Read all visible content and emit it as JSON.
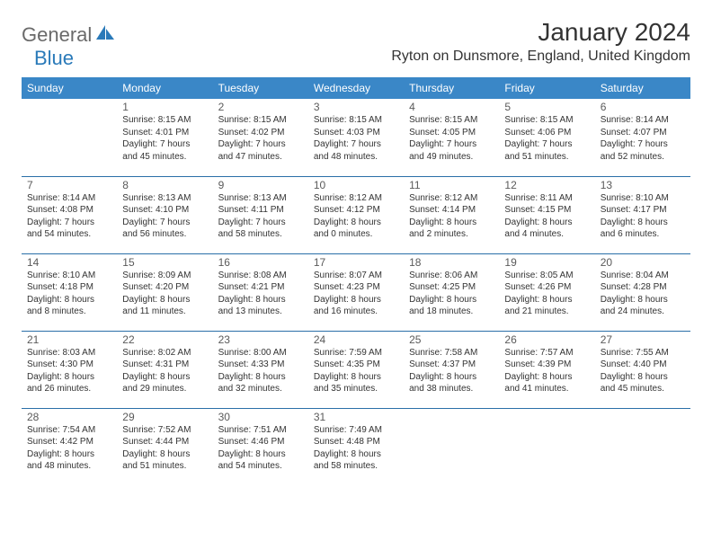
{
  "brand": {
    "text1": "General",
    "text2": "Blue",
    "icon_color": "#2a7ab9",
    "gray_color": "#6a6a6a"
  },
  "header": {
    "month_title": "January 2024",
    "location": "Ryton on Dunsmore, England, United Kingdom"
  },
  "colors": {
    "header_bg": "#3a87c7",
    "header_fg": "#ffffff",
    "row_border": "#2a6fa8",
    "text": "#333333",
    "daynum": "#5a5a5a",
    "background": "#ffffff"
  },
  "weekday_labels": [
    "Sunday",
    "Monday",
    "Tuesday",
    "Wednesday",
    "Thursday",
    "Friday",
    "Saturday"
  ],
  "weeks": [
    [
      null,
      {
        "n": "1",
        "sr": "Sunrise: 8:15 AM",
        "ss": "Sunset: 4:01 PM",
        "d1": "Daylight: 7 hours",
        "d2": "and 45 minutes."
      },
      {
        "n": "2",
        "sr": "Sunrise: 8:15 AM",
        "ss": "Sunset: 4:02 PM",
        "d1": "Daylight: 7 hours",
        "d2": "and 47 minutes."
      },
      {
        "n": "3",
        "sr": "Sunrise: 8:15 AM",
        "ss": "Sunset: 4:03 PM",
        "d1": "Daylight: 7 hours",
        "d2": "and 48 minutes."
      },
      {
        "n": "4",
        "sr": "Sunrise: 8:15 AM",
        "ss": "Sunset: 4:05 PM",
        "d1": "Daylight: 7 hours",
        "d2": "and 49 minutes."
      },
      {
        "n": "5",
        "sr": "Sunrise: 8:15 AM",
        "ss": "Sunset: 4:06 PM",
        "d1": "Daylight: 7 hours",
        "d2": "and 51 minutes."
      },
      {
        "n": "6",
        "sr": "Sunrise: 8:14 AM",
        "ss": "Sunset: 4:07 PM",
        "d1": "Daylight: 7 hours",
        "d2": "and 52 minutes."
      }
    ],
    [
      {
        "n": "7",
        "sr": "Sunrise: 8:14 AM",
        "ss": "Sunset: 4:08 PM",
        "d1": "Daylight: 7 hours",
        "d2": "and 54 minutes."
      },
      {
        "n": "8",
        "sr": "Sunrise: 8:13 AM",
        "ss": "Sunset: 4:10 PM",
        "d1": "Daylight: 7 hours",
        "d2": "and 56 minutes."
      },
      {
        "n": "9",
        "sr": "Sunrise: 8:13 AM",
        "ss": "Sunset: 4:11 PM",
        "d1": "Daylight: 7 hours",
        "d2": "and 58 minutes."
      },
      {
        "n": "10",
        "sr": "Sunrise: 8:12 AM",
        "ss": "Sunset: 4:12 PM",
        "d1": "Daylight: 8 hours",
        "d2": "and 0 minutes."
      },
      {
        "n": "11",
        "sr": "Sunrise: 8:12 AM",
        "ss": "Sunset: 4:14 PM",
        "d1": "Daylight: 8 hours",
        "d2": "and 2 minutes."
      },
      {
        "n": "12",
        "sr": "Sunrise: 8:11 AM",
        "ss": "Sunset: 4:15 PM",
        "d1": "Daylight: 8 hours",
        "d2": "and 4 minutes."
      },
      {
        "n": "13",
        "sr": "Sunrise: 8:10 AM",
        "ss": "Sunset: 4:17 PM",
        "d1": "Daylight: 8 hours",
        "d2": "and 6 minutes."
      }
    ],
    [
      {
        "n": "14",
        "sr": "Sunrise: 8:10 AM",
        "ss": "Sunset: 4:18 PM",
        "d1": "Daylight: 8 hours",
        "d2": "and 8 minutes."
      },
      {
        "n": "15",
        "sr": "Sunrise: 8:09 AM",
        "ss": "Sunset: 4:20 PM",
        "d1": "Daylight: 8 hours",
        "d2": "and 11 minutes."
      },
      {
        "n": "16",
        "sr": "Sunrise: 8:08 AM",
        "ss": "Sunset: 4:21 PM",
        "d1": "Daylight: 8 hours",
        "d2": "and 13 minutes."
      },
      {
        "n": "17",
        "sr": "Sunrise: 8:07 AM",
        "ss": "Sunset: 4:23 PM",
        "d1": "Daylight: 8 hours",
        "d2": "and 16 minutes."
      },
      {
        "n": "18",
        "sr": "Sunrise: 8:06 AM",
        "ss": "Sunset: 4:25 PM",
        "d1": "Daylight: 8 hours",
        "d2": "and 18 minutes."
      },
      {
        "n": "19",
        "sr": "Sunrise: 8:05 AM",
        "ss": "Sunset: 4:26 PM",
        "d1": "Daylight: 8 hours",
        "d2": "and 21 minutes."
      },
      {
        "n": "20",
        "sr": "Sunrise: 8:04 AM",
        "ss": "Sunset: 4:28 PM",
        "d1": "Daylight: 8 hours",
        "d2": "and 24 minutes."
      }
    ],
    [
      {
        "n": "21",
        "sr": "Sunrise: 8:03 AM",
        "ss": "Sunset: 4:30 PM",
        "d1": "Daylight: 8 hours",
        "d2": "and 26 minutes."
      },
      {
        "n": "22",
        "sr": "Sunrise: 8:02 AM",
        "ss": "Sunset: 4:31 PM",
        "d1": "Daylight: 8 hours",
        "d2": "and 29 minutes."
      },
      {
        "n": "23",
        "sr": "Sunrise: 8:00 AM",
        "ss": "Sunset: 4:33 PM",
        "d1": "Daylight: 8 hours",
        "d2": "and 32 minutes."
      },
      {
        "n": "24",
        "sr": "Sunrise: 7:59 AM",
        "ss": "Sunset: 4:35 PM",
        "d1": "Daylight: 8 hours",
        "d2": "and 35 minutes."
      },
      {
        "n": "25",
        "sr": "Sunrise: 7:58 AM",
        "ss": "Sunset: 4:37 PM",
        "d1": "Daylight: 8 hours",
        "d2": "and 38 minutes."
      },
      {
        "n": "26",
        "sr": "Sunrise: 7:57 AM",
        "ss": "Sunset: 4:39 PM",
        "d1": "Daylight: 8 hours",
        "d2": "and 41 minutes."
      },
      {
        "n": "27",
        "sr": "Sunrise: 7:55 AM",
        "ss": "Sunset: 4:40 PM",
        "d1": "Daylight: 8 hours",
        "d2": "and 45 minutes."
      }
    ],
    [
      {
        "n": "28",
        "sr": "Sunrise: 7:54 AM",
        "ss": "Sunset: 4:42 PM",
        "d1": "Daylight: 8 hours",
        "d2": "and 48 minutes."
      },
      {
        "n": "29",
        "sr": "Sunrise: 7:52 AM",
        "ss": "Sunset: 4:44 PM",
        "d1": "Daylight: 8 hours",
        "d2": "and 51 minutes."
      },
      {
        "n": "30",
        "sr": "Sunrise: 7:51 AM",
        "ss": "Sunset: 4:46 PM",
        "d1": "Daylight: 8 hours",
        "d2": "and 54 minutes."
      },
      {
        "n": "31",
        "sr": "Sunrise: 7:49 AM",
        "ss": "Sunset: 4:48 PM",
        "d1": "Daylight: 8 hours",
        "d2": "and 58 minutes."
      },
      null,
      null,
      null
    ]
  ]
}
